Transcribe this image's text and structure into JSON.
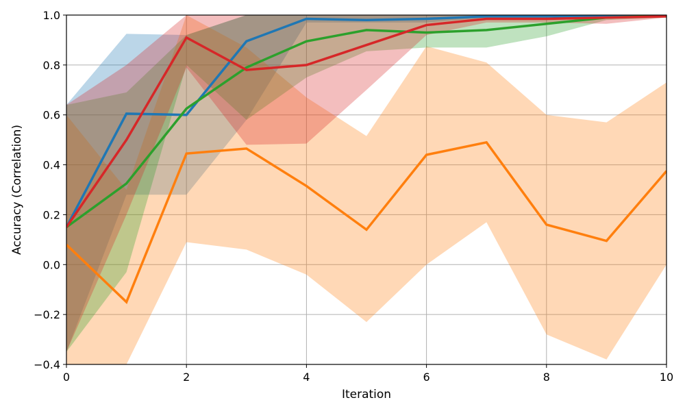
{
  "chart_data": {
    "type": "line",
    "title": "",
    "xlabel": "Iteration",
    "ylabel": "Accuracy (Correlation)",
    "xlim": [
      0,
      10
    ],
    "ylim": [
      -0.4,
      1.0
    ],
    "grid": true,
    "legend": null,
    "x": [
      0,
      1,
      2,
      3,
      4,
      5,
      6,
      7,
      8,
      9,
      10
    ],
    "xticks": [
      0,
      2,
      4,
      6,
      8,
      10
    ],
    "xtick_labels": [
      "0",
      "2",
      "4",
      "6",
      "8",
      "10"
    ],
    "yticks": [
      -0.4,
      -0.2,
      0.0,
      0.2,
      0.4,
      0.6,
      0.8,
      1.0
    ],
    "ytick_labels": [
      "−0.4",
      "−0.2",
      "0.0",
      "0.2",
      "0.4",
      "0.6",
      "0.8",
      "1.0"
    ],
    "series": [
      {
        "name": "blue",
        "color": "#1f77b4",
        "values": [
          0.15,
          0.605,
          0.6,
          0.895,
          0.985,
          0.98,
          0.985,
          0.995,
          0.995,
          0.997,
          0.998
        ],
        "upper": [
          0.64,
          0.925,
          0.92,
          1.0,
          1.0,
          1.0,
          1.0,
          1.0,
          1.0,
          1.0,
          1.0
        ],
        "lower": [
          -0.35,
          0.28,
          0.28,
          0.58,
          0.97,
          0.97,
          0.97,
          0.99,
          0.99,
          0.995,
          0.995
        ]
      },
      {
        "name": "orange",
        "color": "#ff7f0e",
        "values": [
          0.08,
          -0.15,
          0.445,
          0.465,
          0.315,
          0.14,
          0.44,
          0.49,
          0.16,
          0.095,
          0.375
        ],
        "upper": [
          0.6,
          0.3,
          1.0,
          0.87,
          0.67,
          0.515,
          0.875,
          0.81,
          0.6,
          0.57,
          0.73
        ],
        "lower": [
          -0.4,
          -0.4,
          0.09,
          0.06,
          -0.04,
          -0.23,
          0.0,
          0.17,
          -0.28,
          -0.38,
          0.0
        ]
      },
      {
        "name": "green",
        "color": "#2ca02c",
        "values": [
          0.15,
          0.325,
          0.625,
          0.79,
          0.895,
          0.94,
          0.93,
          0.94,
          0.965,
          0.99,
          0.997
        ],
        "upper": [
          0.64,
          0.69,
          0.92,
          1.0,
          1.0,
          1.0,
          1.0,
          1.0,
          1.0,
          1.0,
          1.0
        ],
        "lower": [
          -0.35,
          -0.03,
          0.8,
          0.58,
          0.75,
          0.855,
          0.87,
          0.87,
          0.915,
          0.98,
          0.99
        ]
      },
      {
        "name": "red",
        "color": "#d62728",
        "values": [
          0.15,
          0.5,
          0.91,
          0.78,
          0.8,
          0.88,
          0.96,
          0.985,
          0.985,
          0.99,
          0.995
        ],
        "upper": [
          0.64,
          0.8,
          1.0,
          1.0,
          1.0,
          1.0,
          1.0,
          1.0,
          1.0,
          1.0,
          1.0
        ],
        "lower": [
          -0.35,
          0.2,
          0.79,
          0.48,
          0.485,
          0.7,
          0.92,
          0.97,
          0.97,
          0.965,
          0.99
        ]
      }
    ]
  }
}
